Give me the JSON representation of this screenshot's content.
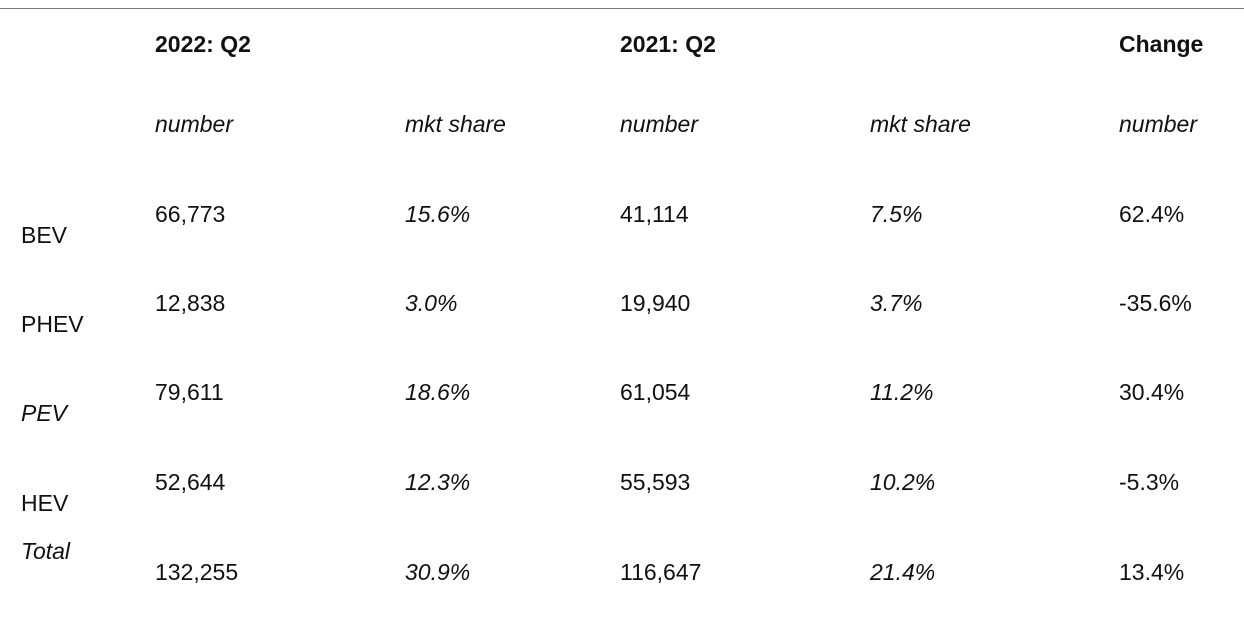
{
  "table": {
    "headers": {
      "group_2022": "2022: Q2",
      "group_2021": "2021: Q2",
      "group_change": "Change"
    },
    "subheaders": [
      "number",
      "mkt share",
      "number",
      "mkt share",
      "number"
    ],
    "rows": [
      {
        "label": "BEV",
        "label_italic": false,
        "values": [
          "66,773",
          "15.6%",
          "41,114",
          "7.5%",
          "62.4%"
        ]
      },
      {
        "label": "PHEV",
        "label_italic": false,
        "values": [
          "12,838",
          "3.0%",
          "19,940",
          "3.7%",
          "-35.6%"
        ]
      },
      {
        "label": "PEV",
        "label_italic": true,
        "values": [
          "79,611",
          "18.6%",
          "61,054",
          "11.2%",
          "30.4%"
        ]
      },
      {
        "label": "HEV",
        "label_italic": false,
        "values": [
          "52,644",
          "12.3%",
          "55,593",
          "10.2%",
          "-5.3%"
        ]
      },
      {
        "label": "Total",
        "label_italic": true,
        "values": [
          "132,255",
          "30.9%",
          "116,647",
          "21.4%",
          "13.4%"
        ]
      }
    ]
  }
}
